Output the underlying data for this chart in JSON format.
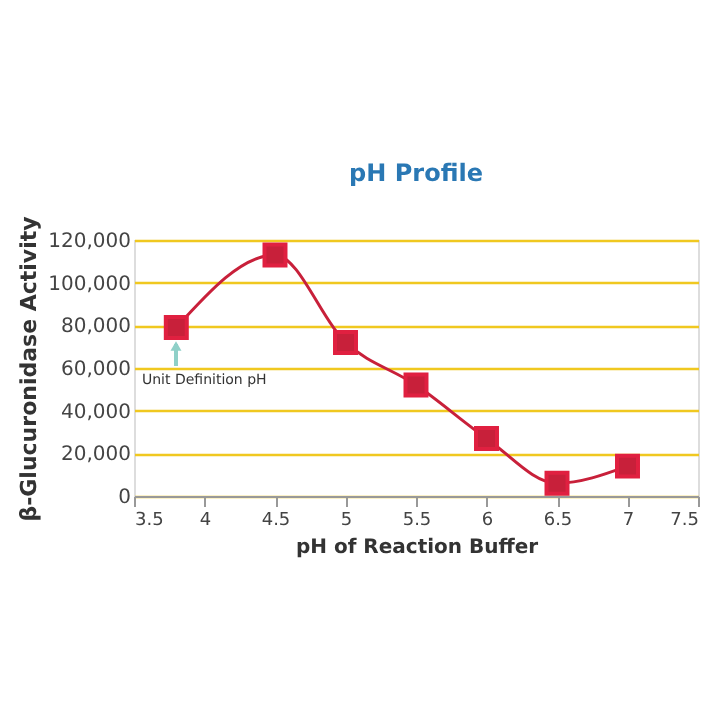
{
  "chart_data": {
    "type": "line",
    "title": "pH Profile",
    "xlabel": "pH of Reaction Buffer",
    "ylabel": "β-Glucuronidase Activity",
    "x": [
      3.8,
      4.5,
      5,
      5.5,
      6,
      6.5,
      7
    ],
    "series": [
      {
        "color": "#c8203a",
        "values": [
          79000,
          113000,
          72000,
          52000,
          27000,
          6000,
          14000
        ]
      }
    ],
    "xlim": [
      3.5,
      7.5
    ],
    "xticks": [
      3.5,
      4,
      4.5,
      5,
      5.5,
      6,
      6.5,
      7,
      7.5
    ],
    "ylim": [
      0,
      120000
    ],
    "yticks": [
      {
        "value": 0,
        "label": "0"
      },
      {
        "value": 20000,
        "label": "20,000"
      },
      {
        "value": 40000,
        "label": "40,000"
      },
      {
        "value": 60000,
        "label": "60,000"
      },
      {
        "value": 80000,
        "label": "80,000"
      },
      {
        "value": 100000,
        "label": "100,000"
      },
      {
        "value": 120000,
        "label": "120,000"
      }
    ],
    "grid": "y",
    "marker": "square",
    "line_style": "solid",
    "annotations": [
      "Unit Definition pH"
    ]
  }
}
